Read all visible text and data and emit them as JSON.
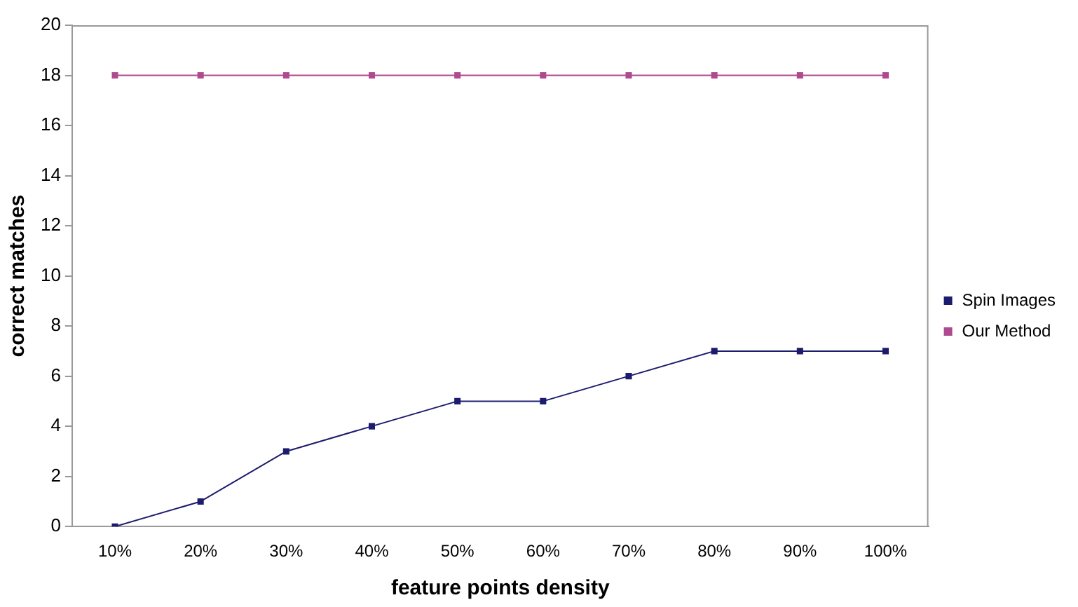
{
  "chart_data": {
    "type": "line",
    "xlabel": "feature points density",
    "ylabel": "correct matches",
    "categories": [
      "10%",
      "20%",
      "30%",
      "40%",
      "50%",
      "60%",
      "70%",
      "80%",
      "90%",
      "100%"
    ],
    "series": [
      {
        "name": "Spin Images",
        "color": "#1c1c6e",
        "values": [
          0,
          1,
          3,
          4,
          5,
          5,
          6,
          7,
          7,
          7
        ]
      },
      {
        "name": "Our Method",
        "color": "#b04a90",
        "values": [
          18,
          18,
          18,
          18,
          18,
          18,
          18,
          18,
          18,
          18
        ]
      }
    ],
    "ylim": [
      0,
      20
    ],
    "yticks": [
      0,
      2,
      4,
      6,
      8,
      10,
      12,
      14,
      16,
      18,
      20
    ],
    "grid": false,
    "legend": "right",
    "marker": "square",
    "line_style": "solid"
  }
}
